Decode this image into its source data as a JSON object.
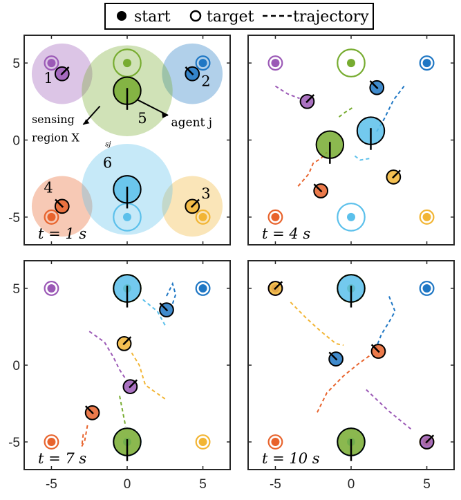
{
  "legend": {
    "start": "start",
    "target": "target",
    "trajectory": "trajectory"
  },
  "colors": {
    "1": "#9b59b6",
    "2": "#1f77c4",
    "3": "#f2b534",
    "4": "#e8632c",
    "5": "#77ac30",
    "6": "#5bc0eb",
    "outline": "#000000"
  },
  "chart_data": {
    "type": "scatter",
    "xlim": [
      -6.8,
      6.8
    ],
    "ylim": [
      -6.8,
      6.8
    ],
    "xticks": [
      "-5",
      "0",
      "5"
    ],
    "yticks": [
      "5",
      "0",
      "-5"
    ],
    "x_tick_values": [
      -5,
      0,
      5
    ],
    "y_tick_values": [
      5,
      0,
      -5
    ],
    "targets": [
      {
        "agent": 1,
        "target": [
          -5,
          5
        ]
      },
      {
        "agent": 2,
        "target": [
          5,
          5
        ]
      },
      {
        "agent": 3,
        "target": [
          5,
          -5
        ]
      },
      {
        "agent": 4,
        "target": [
          -5,
          -5
        ]
      },
      {
        "agent": 5,
        "target": [
          0,
          5
        ]
      },
      {
        "agent": 6,
        "target": [
          0,
          -5
        ]
      }
    ],
    "starts": [
      {
        "agent": 1,
        "start": [
          -5,
          5
        ]
      },
      {
        "agent": 2,
        "start": [
          5,
          5
        ]
      },
      {
        "agent": 3,
        "start": [
          5,
          -5
        ]
      },
      {
        "agent": 4,
        "start": [
          -5,
          -5
        ]
      },
      {
        "agent": 5,
        "start": [
          0,
          5
        ]
      },
      {
        "agent": 6,
        "start": [
          0,
          -5
        ]
      }
    ],
    "panels": [
      {
        "time_label": "t = 1 s",
        "annotations": {
          "sensing": "sensing",
          "region": "region X",
          "region_sub": "sj",
          "agent": "agent j",
          "numbers": [
            "1",
            "2",
            "3",
            "4",
            "5",
            "6"
          ]
        },
        "agents": [
          {
            "id": 1,
            "pos": [
              -4.3,
              4.3
            ],
            "r": 0.45,
            "sense_r": 2.0
          },
          {
            "id": 2,
            "pos": [
              4.3,
              4.3
            ],
            "r": 0.45,
            "sense_r": 2.0
          },
          {
            "id": 3,
            "pos": [
              4.3,
              -4.3
            ],
            "r": 0.45,
            "sense_r": 2.0
          },
          {
            "id": 4,
            "pos": [
              -4.3,
              -4.3
            ],
            "r": 0.45,
            "sense_r": 2.0
          },
          {
            "id": 5,
            "pos": [
              0,
              3.2
            ],
            "r": 0.9,
            "sense_r": 3.0
          },
          {
            "id": 6,
            "pos": [
              0,
              -3.2
            ],
            "r": 0.9,
            "sense_r": 3.0
          }
        ]
      },
      {
        "time_label": "t = 4 s",
        "agents": [
          {
            "id": 1,
            "pos": [
              -2.9,
              2.5
            ],
            "r": 0.45
          },
          {
            "id": 2,
            "pos": [
              1.7,
              3.4
            ],
            "r": 0.45
          },
          {
            "id": 3,
            "pos": [
              2.8,
              -2.4
            ],
            "r": 0.45
          },
          {
            "id": 4,
            "pos": [
              -2.0,
              -3.3
            ],
            "r": 0.45
          },
          {
            "id": 5,
            "pos": [
              -1.4,
              -0.3
            ],
            "r": 0.9
          },
          {
            "id": 6,
            "pos": [
              1.3,
              0.6
            ],
            "r": 0.9
          }
        ]
      },
      {
        "time_label": "t = 7 s",
        "agents": [
          {
            "id": 1,
            "pos": [
              0.2,
              -1.4
            ],
            "r": 0.45
          },
          {
            "id": 2,
            "pos": [
              2.6,
              3.6
            ],
            "r": 0.45
          },
          {
            "id": 3,
            "pos": [
              -0.2,
              1.4
            ],
            "r": 0.45
          },
          {
            "id": 4,
            "pos": [
              -2.3,
              -3.1
            ],
            "r": 0.45
          },
          {
            "id": 5,
            "pos": [
              0,
              -5.0
            ],
            "r": 0.9
          },
          {
            "id": 6,
            "pos": [
              0,
              5.0
            ],
            "r": 0.9
          }
        ]
      },
      {
        "time_label": "t = 10 s",
        "agents": [
          {
            "id": 1,
            "pos": [
              5.0,
              -5.0
            ],
            "r": 0.45
          },
          {
            "id": 2,
            "pos": [
              -1.0,
              0.4
            ],
            "r": 0.45
          },
          {
            "id": 3,
            "pos": [
              -5.0,
              5.0
            ],
            "r": 0.45
          },
          {
            "id": 4,
            "pos": [
              1.8,
              0.9
            ],
            "r": 0.45
          },
          {
            "id": 5,
            "pos": [
              0,
              -5.0
            ],
            "r": 0.9
          },
          {
            "id": 6,
            "pos": [
              0,
              5.0
            ],
            "r": 0.9
          }
        ]
      }
    ]
  }
}
